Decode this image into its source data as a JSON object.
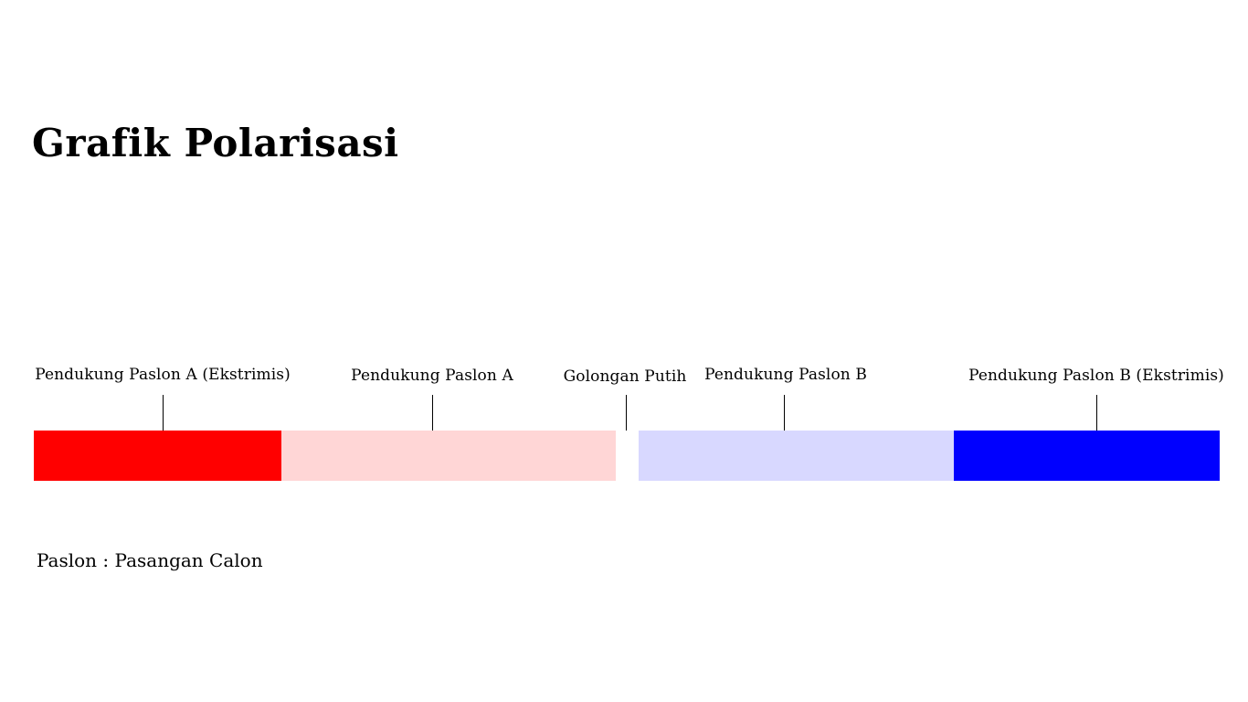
{
  "title": "Grafik Polarisasi",
  "segments": [
    {
      "label": "Pendukung Paslon A (Ekstrimis)",
      "color": "#ff0000"
    },
    {
      "label": "Pendukung Paslon A",
      "color": "#ffd6d6"
    },
    {
      "label": "Golongan Putih",
      "color": "#ffffff"
    },
    {
      "label": "Pendukung Paslon B",
      "color": "#d8d8ff"
    },
    {
      "label": "Pendukung Paslon B (Ekstrimis)",
      "color": "#0000ff"
    }
  ],
  "note": "Paslon : Pasangan Calon"
}
